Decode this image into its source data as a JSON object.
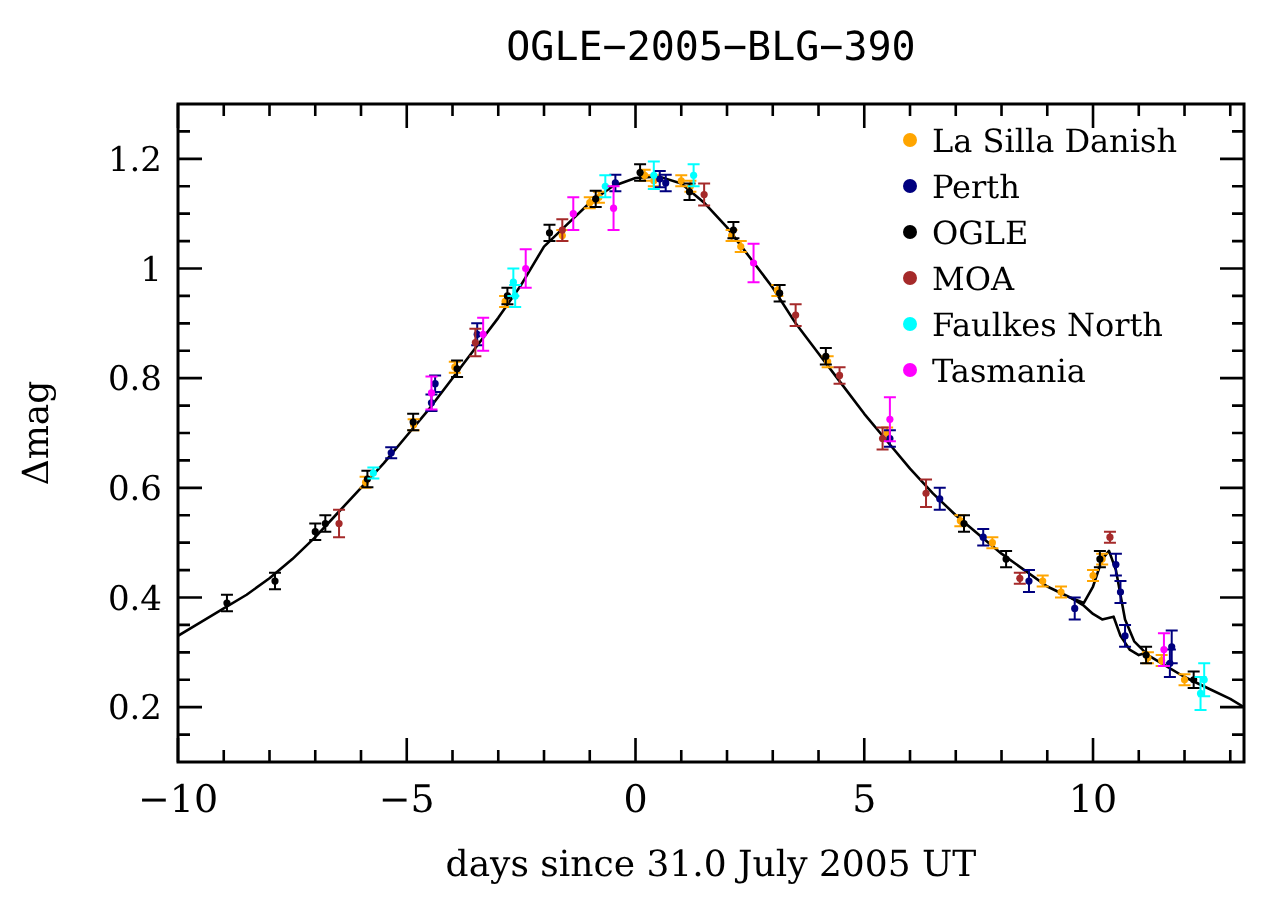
{
  "chart_data": {
    "type": "scatter",
    "title": "OGLE−2005−BLG−390",
    "xlabel": "days since 31.0 July 2005 UT",
    "ylabel": "Δmag",
    "xlim": [
      -10,
      13.3
    ],
    "ylim": [
      0.1,
      1.3
    ],
    "xticks": [
      {
        "value": -10,
        "label": "−10"
      },
      {
        "value": -9,
        "label": null
      },
      {
        "value": -8,
        "label": null
      },
      {
        "value": -7,
        "label": null
      },
      {
        "value": -6,
        "label": null
      },
      {
        "value": -5,
        "label": "−5"
      },
      {
        "value": -4,
        "label": null
      },
      {
        "value": -3,
        "label": null
      },
      {
        "value": -2,
        "label": null
      },
      {
        "value": -1,
        "label": null
      },
      0,
      {
        "value": 1,
        "label": null
      },
      {
        "value": 2,
        "label": null
      },
      {
        "value": 3,
        "label": null
      },
      {
        "value": 4,
        "label": null
      },
      5,
      {
        "value": 6,
        "label": null
      },
      {
        "value": 7,
        "label": null
      },
      {
        "value": 8,
        "label": null
      },
      {
        "value": 9,
        "label": null
      },
      10,
      {
        "value": 11,
        "label": null
      },
      {
        "value": 12,
        "label": null
      },
      {
        "value": 13,
        "label": null
      }
    ],
    "yticks": [
      {
        "value": 0.15,
        "label": null
      },
      0.2,
      {
        "value": 0.25,
        "label": null
      },
      {
        "value": 0.3,
        "label": null
      },
      {
        "value": 0.35,
        "label": null
      },
      0.4,
      {
        "value": 0.45,
        "label": null
      },
      {
        "value": 0.5,
        "label": null
      },
      {
        "value": 0.55,
        "label": null
      },
      0.6,
      {
        "value": 0.65,
        "label": null
      },
      {
        "value": 0.7,
        "label": null
      },
      {
        "value": 0.75,
        "label": null
      },
      0.8,
      {
        "value": 0.85,
        "label": null
      },
      {
        "value": 0.9,
        "label": null
      },
      {
        "value": 0.95,
        "label": null
      },
      1,
      {
        "value": 1.05,
        "label": null
      },
      {
        "value": 1.1,
        "label": null
      },
      {
        "value": 1.15,
        "label": null
      },
      1.2,
      {
        "value": 1.25,
        "label": null
      }
    ],
    "grid": false,
    "legend": "top right",
    "series": [
      {
        "type": "line",
        "marker": "none",
        "color": "#000000",
        "x": [
          -10,
          -9.5,
          -9,
          -8.5,
          -8,
          -7.5,
          -7,
          -6.5,
          -6,
          -5.5,
          -5,
          -4.5,
          -4,
          -3.5,
          -3,
          -2.5,
          -2,
          -1.5,
          -1,
          -0.5,
          0,
          0.5,
          1,
          1.5,
          2,
          2.5,
          3,
          3.5,
          4,
          4.5,
          5,
          5.5,
          6,
          6.5,
          7,
          7.5,
          8,
          8.5,
          9,
          9.5,
          9.8,
          10,
          10.2,
          10.35,
          10.5,
          10.7,
          10.9,
          11.2,
          11.5,
          12,
          12.5,
          13,
          13.3
        ],
        "values": [
          0.33,
          0.355,
          0.38,
          0.405,
          0.435,
          0.47,
          0.51,
          0.555,
          0.6,
          0.645,
          0.695,
          0.745,
          0.8,
          0.855,
          0.91,
          0.97,
          1.04,
          1.08,
          1.12,
          1.15,
          1.165,
          1.168,
          1.155,
          1.12,
          1.075,
          1.02,
          0.965,
          0.9,
          0.845,
          0.79,
          0.735,
          0.685,
          0.635,
          0.59,
          0.55,
          0.515,
          0.48,
          0.45,
          0.42,
          0.4,
          0.39,
          0.42,
          0.47,
          0.485,
          0.45,
          0.36,
          0.32,
          0.295,
          0.28,
          0.255,
          0.235,
          0.215,
          0.2
        ]
      },
      {
        "type": "line",
        "marker": "none",
        "color": "#000000",
        "x": [
          9.5,
          9.8,
          10,
          10.2,
          10.45,
          10.6,
          10.8,
          11.0,
          11.2
        ],
        "values": [
          0.4,
          0.385,
          0.37,
          0.36,
          0.365,
          0.33,
          0.305,
          0.295,
          0.3
        ]
      },
      {
        "name": "La Silla Danish",
        "marker": "circle",
        "color": "#ffa500",
        "x": [
          -5.9,
          -4.85,
          -3.95,
          -2.85,
          -1.6,
          -1,
          -0.8,
          0.2,
          0.4,
          1,
          1.2,
          2.1,
          2.3,
          3.1,
          4.2,
          5.5,
          7.1,
          7.8,
          8.9,
          9.3,
          10,
          10.2,
          11.2,
          11.5,
          12
        ],
        "values": [
          0.61,
          0.715,
          0.82,
          0.94,
          1.06,
          1.12,
          1.13,
          1.17,
          1.16,
          1.16,
          1.15,
          1.06,
          1.04,
          0.96,
          0.83,
          0.7,
          0.54,
          0.5,
          0.43,
          0.41,
          0.44,
          0.47,
          0.29,
          0.285,
          0.25
        ],
        "errors": [
          0.01,
          0.01,
          0.01,
          0.01,
          0.01,
          0.01,
          0.01,
          0.01,
          0.01,
          0.01,
          0.01,
          0.01,
          0.01,
          0.01,
          0.01,
          0.01,
          0.01,
          0.01,
          0.01,
          0.01,
          0.01,
          0.01,
          0.01,
          0.01,
          0.01
        ]
      },
      {
        "name": "Perth",
        "marker": "circle",
        "color": "#00007f",
        "x": [
          -5.34,
          -4.46,
          -4.38,
          -3.46,
          -0.44,
          0.53,
          0.66,
          5.56,
          6.65,
          7.6,
          8.6,
          9.6,
          10.5,
          10.6,
          10.7,
          11.68,
          11.72
        ],
        "values": [
          0.664,
          0.755,
          0.79,
          0.88,
          1.156,
          1.163,
          1.156,
          0.69,
          0.58,
          0.51,
          0.43,
          0.38,
          0.46,
          0.41,
          0.33,
          0.28,
          0.31
        ],
        "errors": [
          0.01,
          0.015,
          0.015,
          0.02,
          0.015,
          0.015,
          0.015,
          0.015,
          0.02,
          0.015,
          0.02,
          0.02,
          0.02,
          0.02,
          0.02,
          0.025,
          0.03
        ]
      },
      {
        "name": "OGLE",
        "marker": "circle",
        "color": "#000000",
        "x": [
          -8.93,
          -7.88,
          -7,
          -6.78,
          -5.86,
          -4.86,
          -3.9,
          -2.8,
          -1.88,
          -0.87,
          0.1,
          1.18,
          2.14,
          3.15,
          4.16,
          7.18,
          8.1,
          10.15,
          11.16,
          12.2
        ],
        "values": [
          0.39,
          0.43,
          0.52,
          0.535,
          0.616,
          0.72,
          0.817,
          0.95,
          1.065,
          1.127,
          1.175,
          1.14,
          1.07,
          0.955,
          0.84,
          0.535,
          0.47,
          0.47,
          0.295,
          0.25
        ],
        "errors": [
          0.015,
          0.015,
          0.015,
          0.015,
          0.015,
          0.015,
          0.015,
          0.015,
          0.015,
          0.015,
          0.015,
          0.015,
          0.015,
          0.015,
          0.015,
          0.015,
          0.015,
          0.015,
          0.015,
          0.015
        ]
      },
      {
        "name": "MOA",
        "marker": "circle",
        "color": "#a52a2a",
        "x": [
          -6.48,
          -3.5,
          -1.6,
          1.5,
          3.5,
          4.46,
          5.4,
          6.35,
          8.4,
          10.37
        ],
        "values": [
          0.535,
          0.865,
          1.07,
          1.135,
          0.915,
          0.805,
          0.69,
          0.59,
          0.435,
          0.51
        ],
        "errors": [
          0.025,
          0.025,
          0.02,
          0.02,
          0.02,
          0.015,
          0.02,
          0.025,
          0.01,
          0.01
        ]
      },
      {
        "name": "Faulkes North",
        "marker": "circle",
        "color": "#00ffff",
        "x": [
          -5.73,
          -2.67,
          -2.63,
          -0.66,
          0.4,
          1.27,
          12.43,
          12.35
        ],
        "values": [
          0.627,
          0.975,
          0.95,
          1.15,
          1.17,
          1.17,
          0.25,
          0.225
        ],
        "errors": [
          0.01,
          0.025,
          0.02,
          0.02,
          0.025,
          0.02,
          0.03,
          0.03
        ]
      },
      {
        "name": "Tasmania",
        "marker": "circle",
        "color": "#ff00ff",
        "x": [
          -4.46,
          -3.33,
          -2.4,
          -1.36,
          -0.48,
          2.58,
          5.56,
          11.55
        ],
        "values": [
          0.773,
          0.88,
          1,
          1.1,
          1.11,
          1.01,
          0.725,
          0.305
        ],
        "errors": [
          0.03,
          0.03,
          0.035,
          0.03,
          0.04,
          0.035,
          0.04,
          0.03
        ]
      }
    ]
  }
}
